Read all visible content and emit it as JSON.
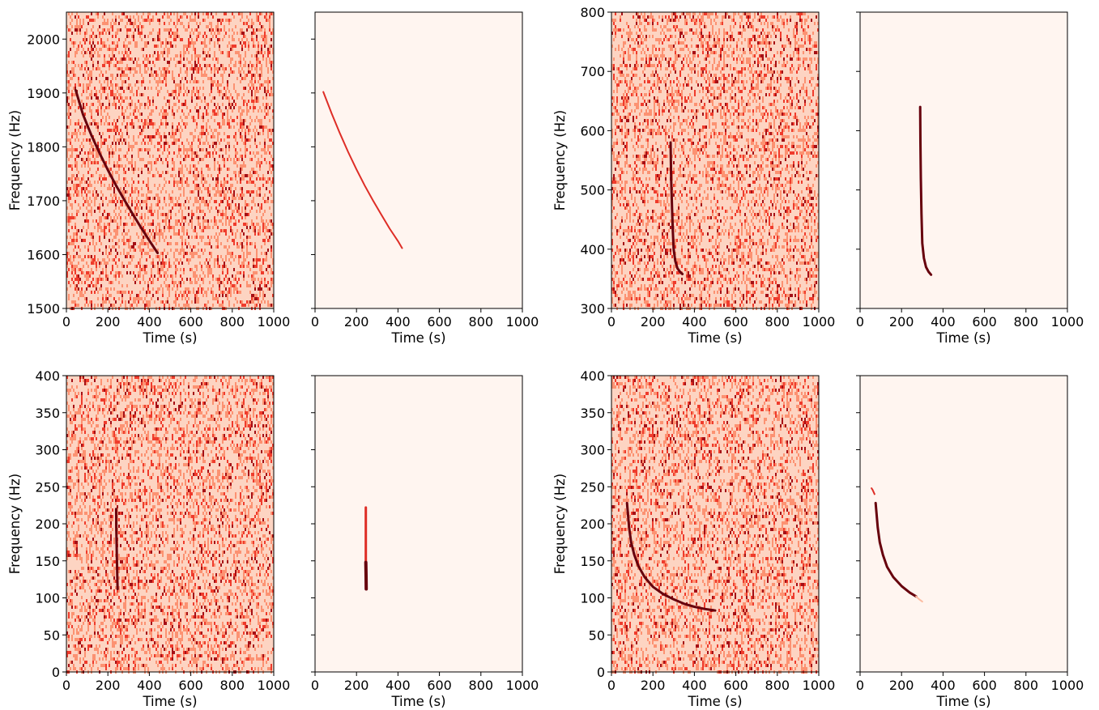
{
  "colors": {
    "background": "#fff5f0",
    "noise_light": "#fdd4c2",
    "noise_mid": "#fc9272",
    "noise_red": "#ef3b2c",
    "noise_dark": "#a50f15",
    "signal_dark": "#67000d",
    "signal_red": "#de2d26",
    "signal_faint": "#fcbba1"
  },
  "chart_data": [
    {
      "id": "top-left-noisy",
      "type": "heatmap",
      "variant": "noisy",
      "xlabel": "Time (s)",
      "ylabel": "Frequency (Hz)",
      "xlim": [
        0,
        1000
      ],
      "ylim": [
        1500,
        2050
      ],
      "xticks": [
        "0",
        "200",
        "400",
        "600",
        "800",
        "1000"
      ],
      "yticks": [
        "1500",
        "1600",
        "1700",
        "1800",
        "1900",
        "2000"
      ],
      "signal": [
        {
          "x": [
            45,
            80,
            120,
            160,
            200,
            240,
            280,
            320,
            360,
            400,
            440
          ],
          "y": [
            1905,
            1860,
            1822,
            1788,
            1757,
            1728,
            1701,
            1675,
            1650,
            1626,
            1603
          ],
          "width": 3,
          "color": "signal_dark"
        }
      ]
    },
    {
      "id": "top-left-clean",
      "type": "heatmap",
      "variant": "clean",
      "xlabel": "Time (s)",
      "ylabel": "",
      "xlim": [
        0,
        1000
      ],
      "ylim": [
        1500,
        2050
      ],
      "xticks": [
        "0",
        "200",
        "400",
        "600",
        "800",
        "1000"
      ],
      "yticks": [],
      "signal": [
        {
          "x": [
            40,
            80,
            120,
            160,
            200,
            240,
            280,
            320,
            360,
            400,
            420
          ],
          "y": [
            1902,
            1862,
            1825,
            1790,
            1758,
            1728,
            1700,
            1674,
            1648,
            1625,
            1612
          ],
          "width": 2,
          "color": "signal_red"
        }
      ]
    },
    {
      "id": "top-right-noisy",
      "type": "heatmap",
      "variant": "noisy",
      "xlabel": "Time (s)",
      "ylabel": "Frequency (Hz)",
      "xlim": [
        0,
        1000
      ],
      "ylim": [
        300,
        800
      ],
      "xticks": [
        "0",
        "200",
        "400",
        "600",
        "800",
        "1000"
      ],
      "yticks": [
        "300",
        "400",
        "500",
        "600",
        "700",
        "800"
      ],
      "signal": [
        {
          "x": [
            285,
            288,
            292,
            296,
            300,
            308,
            318,
            330,
            342
          ],
          "y": [
            580,
            520,
            470,
            430,
            400,
            380,
            368,
            362,
            358
          ],
          "width": 3,
          "color": "signal_dark"
        }
      ]
    },
    {
      "id": "top-right-clean",
      "type": "heatmap",
      "variant": "clean",
      "xlabel": "Time (s)",
      "ylabel": "",
      "xlim": [
        0,
        1000
      ],
      "ylim": [
        300,
        800
      ],
      "xticks": [
        "0",
        "200",
        "400",
        "600",
        "800",
        "1000"
      ],
      "yticks": [],
      "signal": [
        {
          "x": [
            290,
            291,
            293,
            296,
            300,
            308,
            318,
            330,
            342
          ],
          "y": [
            640,
            580,
            520,
            460,
            410,
            385,
            370,
            362,
            357
          ],
          "width": 3,
          "color": "signal_dark"
        }
      ]
    },
    {
      "id": "bottom-left-noisy",
      "type": "heatmap",
      "variant": "noisy",
      "xlabel": "Time (s)",
      "ylabel": "Frequency (Hz)",
      "xlim": [
        0,
        1000
      ],
      "ylim": [
        0,
        400
      ],
      "xticks": [
        "0",
        "200",
        "400",
        "600",
        "800",
        "1000"
      ],
      "yticks": [
        "0",
        "50",
        "100",
        "150",
        "200",
        "250",
        "300",
        "350",
        "400"
      ],
      "signal": [
        {
          "x": [
            240,
            241,
            243,
            245,
            247
          ],
          "y": [
            220,
            190,
            160,
            135,
            112
          ],
          "width": 3,
          "color": "signal_dark"
        }
      ]
    },
    {
      "id": "bottom-left-clean",
      "type": "heatmap",
      "variant": "clean",
      "xlabel": "Time (s)",
      "ylabel": "",
      "xlim": [
        0,
        1000
      ],
      "ylim": [
        0,
        400
      ],
      "xticks": [
        "0",
        "200",
        "400",
        "600",
        "800",
        "1000"
      ],
      "yticks": [],
      "signal": [
        {
          "x": [
            245,
            245,
            245
          ],
          "y": [
            222,
            185,
            150
          ],
          "width": 3,
          "color": "signal_red"
        },
        {
          "x": [
            245,
            246,
            247
          ],
          "y": [
            148,
            130,
            112
          ],
          "width": 4,
          "color": "signal_dark"
        }
      ]
    },
    {
      "id": "bottom-right-noisy",
      "type": "heatmap",
      "variant": "noisy",
      "xlabel": "Time (s)",
      "ylabel": "Frequency (Hz)",
      "xlim": [
        0,
        1000
      ],
      "ylim": [
        0,
        400
      ],
      "xticks": [
        "0",
        "200",
        "400",
        "600",
        "800",
        "1000"
      ],
      "yticks": [
        "0",
        "50",
        "100",
        "150",
        "200",
        "250",
        "300",
        "350",
        "400"
      ],
      "signal": [
        {
          "x": [
            75,
            85,
            95,
            110,
            130,
            160,
            200,
            250,
            300,
            350,
            400,
            450,
            500
          ],
          "y": [
            228,
            195,
            175,
            158,
            143,
            128,
            115,
            105,
            98,
            92,
            88,
            85,
            83
          ],
          "width": 3,
          "color": "signal_dark"
        }
      ]
    },
    {
      "id": "bottom-right-clean",
      "type": "heatmap",
      "variant": "clean",
      "xlabel": "Time (s)",
      "ylabel": "",
      "xlim": [
        0,
        1000
      ],
      "ylim": [
        0,
        400
      ],
      "xticks": [
        "0",
        "200",
        "400",
        "600",
        "800",
        "1000"
      ],
      "yticks": [],
      "signal": [
        {
          "x": [
            55,
            60,
            70
          ],
          "y": [
            248,
            246,
            240
          ],
          "width": 2,
          "color": "signal_red"
        },
        {
          "x": [
            75,
            85,
            95,
            110,
            130,
            160,
            200,
            240,
            270
          ],
          "y": [
            228,
            195,
            175,
            158,
            142,
            128,
            116,
            107,
            102
          ],
          "width": 3,
          "color": "signal_dark"
        },
        {
          "x": [
            270,
            285,
            300
          ],
          "y": [
            102,
            98,
            95
          ],
          "width": 2,
          "color": "signal_faint"
        }
      ]
    }
  ]
}
